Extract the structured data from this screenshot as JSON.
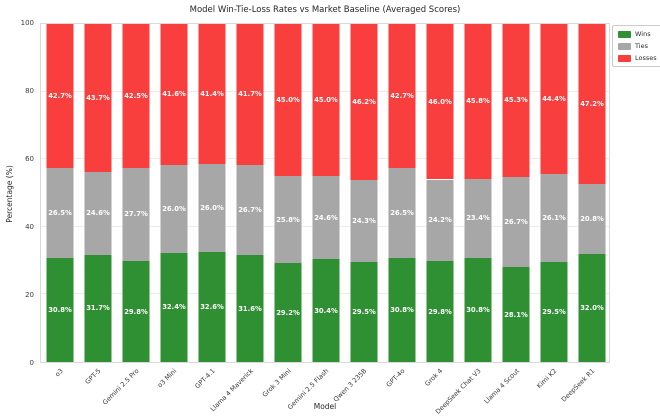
{
  "title": "Model Win-Tie-Loss Rates vs Market Baseline (Averaged Scores)",
  "chart_data": {
    "type": "bar",
    "stacked": true,
    "title": "Model Win-Tie-Loss Rates vs Market Baseline (Averaged Scores)",
    "xlabel": "Model",
    "ylabel": "Percentage (%)",
    "ylim": [
      0,
      100
    ],
    "yticks": [
      0,
      20,
      40,
      60,
      80,
      100
    ],
    "grid": true,
    "legend_position": "upper right outside plot",
    "value_label_format": "{value}%",
    "value_label_color": "#ffffff",
    "categories": [
      "o3",
      "GPT-5",
      "Gemini 2.5 Pro",
      "o3 Mini",
      "GPT-4.1",
      "Llama 4 Maverick",
      "Grok 3 Mini",
      "Gemini 2.5 Flash",
      "Qwen 3 235B",
      "GPT-4o",
      "Grok 4",
      "DeepSeek Chat V3",
      "Llama 4 Scout",
      "Kimi K2",
      "DeepSeek R1"
    ],
    "series": [
      {
        "name": "Wins",
        "color": "#2f8f33",
        "values": [
          30.8,
          31.7,
          29.8,
          32.4,
          32.6,
          31.6,
          29.2,
          30.4,
          29.5,
          30.8,
          29.8,
          30.8,
          28.1,
          29.5,
          32.0
        ]
      },
      {
        "name": "Ties",
        "color": "#a7a7a7",
        "values": [
          26.5,
          24.6,
          27.7,
          26.0,
          26.0,
          26.7,
          25.8,
          24.6,
          24.3,
          26.5,
          24.2,
          23.4,
          26.7,
          26.1,
          20.8
        ]
      },
      {
        "name": "Losses",
        "color": "#f93e3e",
        "values": [
          42.7,
          43.7,
          42.5,
          41.6,
          41.4,
          41.7,
          45.0,
          45.0,
          46.2,
          42.7,
          46.0,
          45.8,
          45.3,
          44.4,
          47.2
        ]
      }
    ]
  }
}
